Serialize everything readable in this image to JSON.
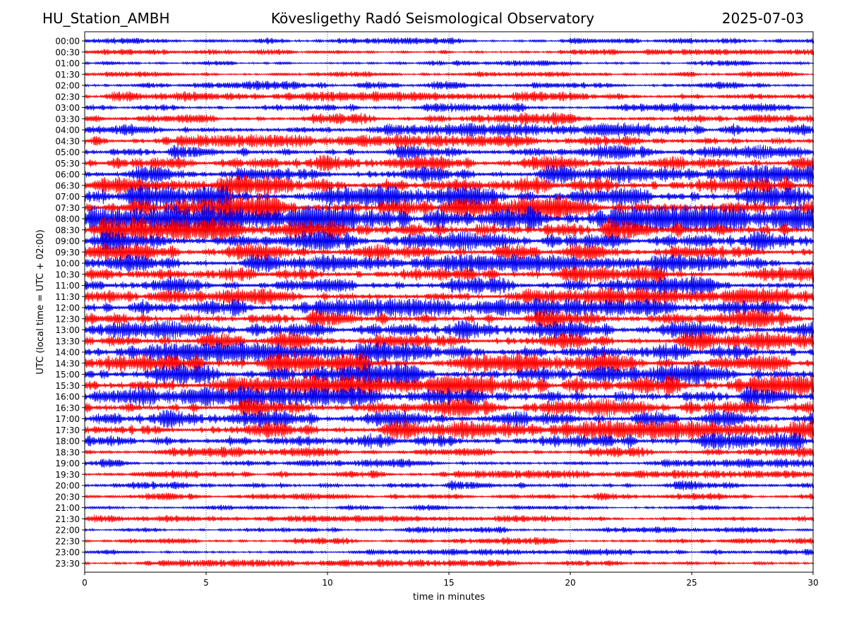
{
  "header": {
    "station": "HU_Station_AMBH",
    "observatory": "Kövesligethy Radó Seismological Observatory",
    "date": "2025-07-03"
  },
  "chart_data": {
    "type": "line",
    "subtype": "helicorder",
    "xlabel": "time in minutes",
    "ylabel": "UTC (local time = UTC + 02:00)",
    "xlim": [
      0,
      30
    ],
    "x_ticks": [
      0,
      5,
      10,
      15,
      20,
      25,
      30
    ],
    "grid": "vertical dotted",
    "trace_colors": [
      "#0000ee",
      "#ff0000"
    ],
    "rows": [
      {
        "label": "00:00",
        "amp": 0.15
      },
      {
        "label": "00:30",
        "amp": 0.12
      },
      {
        "label": "01:00",
        "amp": 0.12
      },
      {
        "label": "01:30",
        "amp": 0.12
      },
      {
        "label": "02:00",
        "amp": 0.3
      },
      {
        "label": "02:30",
        "amp": 0.35
      },
      {
        "label": "03:00",
        "amp": 0.3
      },
      {
        "label": "03:30",
        "amp": 0.45
      },
      {
        "label": "04:00",
        "amp": 0.55
      },
      {
        "label": "04:30",
        "amp": 0.5
      },
      {
        "label": "05:00",
        "amp": 0.6
      },
      {
        "label": "05:30",
        "amp": 0.7
      },
      {
        "label": "06:00",
        "amp": 0.85
      },
      {
        "label": "06:30",
        "amp": 1.0
      },
      {
        "label": "07:00",
        "amp": 1.1
      },
      {
        "label": "07:30",
        "amp": 1.3
      },
      {
        "label": "08:00",
        "amp": 1.3
      },
      {
        "label": "08:30",
        "amp": 1.2
      },
      {
        "label": "09:00",
        "amp": 0.9
      },
      {
        "label": "09:30",
        "amp": 0.85
      },
      {
        "label": "10:00",
        "amp": 0.8
      },
      {
        "label": "10:30",
        "amp": 0.75
      },
      {
        "label": "11:00",
        "amp": 0.8
      },
      {
        "label": "11:30",
        "amp": 0.75
      },
      {
        "label": "12:00",
        "amp": 0.8
      },
      {
        "label": "12:30",
        "amp": 0.85
      },
      {
        "label": "13:00",
        "amp": 0.85
      },
      {
        "label": "13:30",
        "amp": 0.9
      },
      {
        "label": "14:00",
        "amp": 0.95
      },
      {
        "label": "14:30",
        "amp": 1.0
      },
      {
        "label": "15:00",
        "amp": 1.05
      },
      {
        "label": "15:30",
        "amp": 1.0
      },
      {
        "label": "16:00",
        "amp": 0.95
      },
      {
        "label": "16:30",
        "amp": 0.85
      },
      {
        "label": "17:00",
        "amp": 0.8
      },
      {
        "label": "17:30",
        "amp": 0.9
      },
      {
        "label": "18:00",
        "amp": 0.75
      },
      {
        "label": "18:30",
        "amp": 0.4
      },
      {
        "label": "19:00",
        "amp": 0.3
      },
      {
        "label": "19:30",
        "amp": 0.25
      },
      {
        "label": "20:00",
        "amp": 0.35
      },
      {
        "label": "20:30",
        "amp": 0.2
      },
      {
        "label": "21:00",
        "amp": 0.15
      },
      {
        "label": "21:30",
        "amp": 0.18
      },
      {
        "label": "22:00",
        "amp": 0.15
      },
      {
        "label": "22:30",
        "amp": 0.2
      },
      {
        "label": "23:00",
        "amp": 0.15
      },
      {
        "label": "23:30",
        "amp": 0.2
      }
    ]
  }
}
